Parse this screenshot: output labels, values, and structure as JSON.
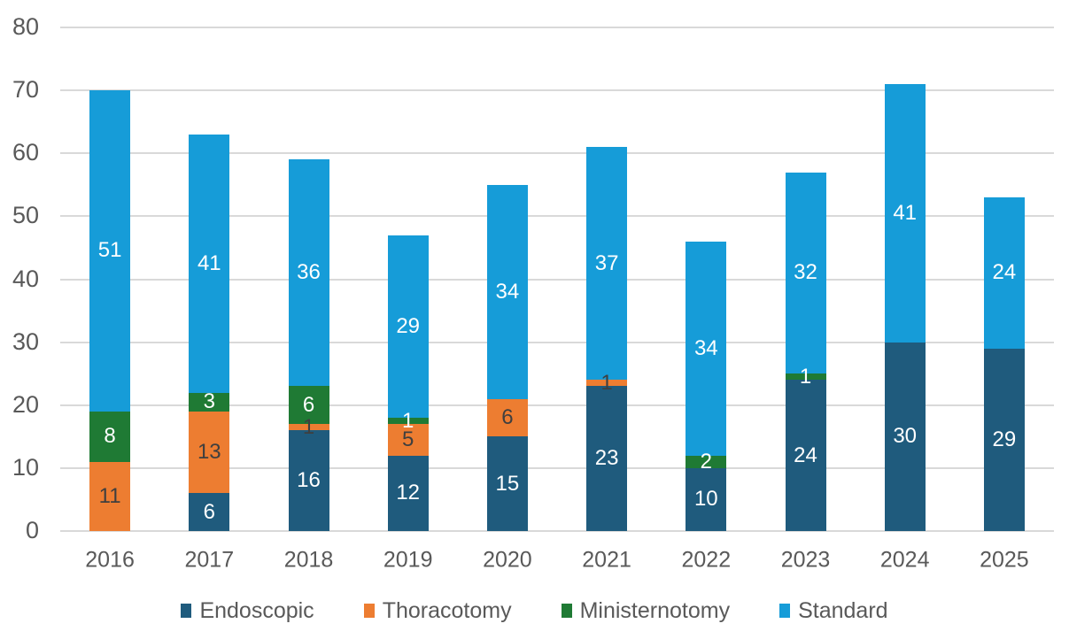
{
  "chart_data": {
    "type": "bar",
    "stacked": true,
    "title": "",
    "xlabel": "",
    "ylabel": "",
    "categories": [
      "2016",
      "2017",
      "2018",
      "2019",
      "2020",
      "2021",
      "2022",
      "2023",
      "2024",
      "2025"
    ],
    "series": [
      {
        "name": "Endoscopic",
        "color": "#1f5b7d",
        "label_color": "#ffffff",
        "values": [
          0,
          6,
          16,
          12,
          15,
          23,
          10,
          24,
          30,
          29
        ]
      },
      {
        "name": "Thoracotomy",
        "color": "#ed7d31",
        "label_color": "#3f3f3f",
        "values": [
          11,
          13,
          1,
          5,
          6,
          1,
          0,
          0,
          0,
          0
        ]
      },
      {
        "name": "Ministernotomy",
        "color": "#1f7a34",
        "label_color": "#ffffff",
        "values": [
          8,
          3,
          6,
          1,
          0,
          0,
          2,
          1,
          0,
          0
        ]
      },
      {
        "name": "Standard",
        "color": "#169cd8",
        "label_color": "#ffffff",
        "values": [
          51,
          41,
          36,
          29,
          34,
          37,
          34,
          32,
          41,
          24
        ]
      }
    ],
    "totals": [
      70,
      63,
      59,
      47,
      55,
      61,
      46,
      57,
      71,
      53
    ],
    "ylim": [
      0,
      80
    ],
    "yticks": [
      0,
      10,
      20,
      30,
      40,
      50,
      60,
      70,
      80
    ],
    "grid": true,
    "legend_position": "bottom",
    "colors": {
      "gridline": "#d9d9d9",
      "axis_text": "#595959",
      "background": "#ffffff"
    }
  }
}
